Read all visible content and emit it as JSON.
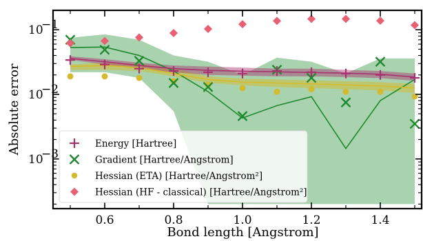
{
  "chart_data": {
    "type": "line",
    "title": "",
    "xlabel": "Bond length [Angstrom]",
    "ylabel": "Absolute error",
    "xlim": [
      0.45,
      1.52
    ],
    "ylim": [
      0.00017,
      0.2
    ],
    "yscale": "log",
    "grid": false,
    "legend_position": "lower-left",
    "x_ticks": [
      0.6,
      0.8,
      1.0,
      1.2,
      1.4
    ],
    "x_tick_labels": [
      "0.6",
      "0.8",
      "1.0",
      "1.2",
      "1.4"
    ],
    "y_ticks": [
      0.001,
      0.01,
      0.1
    ],
    "y_tick_labels": [
      "10",
      "10",
      "10"
    ],
    "y_tick_exponents": [
      "−3",
      "−2",
      "−1"
    ],
    "x": [
      0.5,
      0.6,
      0.7,
      0.8,
      0.9,
      1.0,
      1.1,
      1.2,
      1.3,
      1.4,
      1.5
    ],
    "series": [
      {
        "name": "Energy [Hartree]",
        "marker": "plus",
        "color": "#a8326e",
        "points": [
          0.034,
          0.029,
          0.025,
          0.023,
          0.022,
          0.021,
          0.023,
          0.022,
          0.021,
          0.02,
          0.018
        ],
        "line": [
          0.036,
          0.032,
          0.028,
          0.025,
          0.0235,
          0.0228,
          0.0223,
          0.0218,
          0.0213,
          0.0205,
          0.0185
        ],
        "band_low": [
          0.034,
          0.029,
          0.025,
          0.022,
          0.02,
          0.0195,
          0.019,
          0.019,
          0.0185,
          0.0178,
          0.0162
        ],
        "band_high": [
          0.039,
          0.035,
          0.031,
          0.028,
          0.027,
          0.026,
          0.025,
          0.025,
          0.024,
          0.023,
          0.021
        ]
      },
      {
        "name": "Gradient [Hartree/Angstrom]",
        "marker": "x",
        "color": "#1e8a2e",
        "points": [
          0.07,
          0.049,
          0.033,
          0.015,
          0.013,
          0.0046,
          0.024,
          0.018,
          0.0075,
          0.032,
          0.0035
        ],
        "line": [
          0.053,
          0.054,
          0.04,
          0.023,
          0.011,
          0.0043,
          0.0067,
          0.0092,
          0.00145,
          0.008,
          0.017
        ],
        "band_low": [
          0.022,
          0.022,
          0.018,
          0.0055,
          0.0002,
          0.0002,
          0.0002,
          0.0002,
          0.0002,
          0.0002,
          0.0002
        ],
        "band_high": [
          0.075,
          0.085,
          0.07,
          0.04,
          0.032,
          0.02,
          0.037,
          0.032,
          0.021,
          0.036,
          0.036
        ]
      },
      {
        "name": "Hessian (ETA) [Hartree/Angstrom²]",
        "marker": "circle",
        "color": "#d4bb2e",
        "points": [
          0.019,
          0.019,
          0.018,
          0.016,
          0.014,
          0.0125,
          0.011,
          0.012,
          0.011,
          0.011,
          0.0093
        ],
        "line": [
          0.027,
          0.028,
          0.026,
          0.021,
          0.017,
          0.0155,
          0.015,
          0.0145,
          0.014,
          0.0135,
          0.0125
        ],
        "band_low": [
          0.024,
          0.024,
          0.023,
          0.019,
          0.015,
          0.0138,
          0.013,
          0.0125,
          0.012,
          0.0115,
          0.0105
        ],
        "band_high": [
          0.029,
          0.031,
          0.03,
          0.025,
          0.019,
          0.0175,
          0.017,
          0.0165,
          0.016,
          0.0155,
          0.0145
        ]
      },
      {
        "name": "Hessian (HF - classical) [Hartree/Angstrom²]",
        "marker": "diamond",
        "color": "#ec5f72",
        "points": [
          0.062,
          0.067,
          0.076,
          0.089,
          0.103,
          0.122,
          0.137,
          0.147,
          0.147,
          0.138,
          0.118
        ]
      }
    ]
  }
}
